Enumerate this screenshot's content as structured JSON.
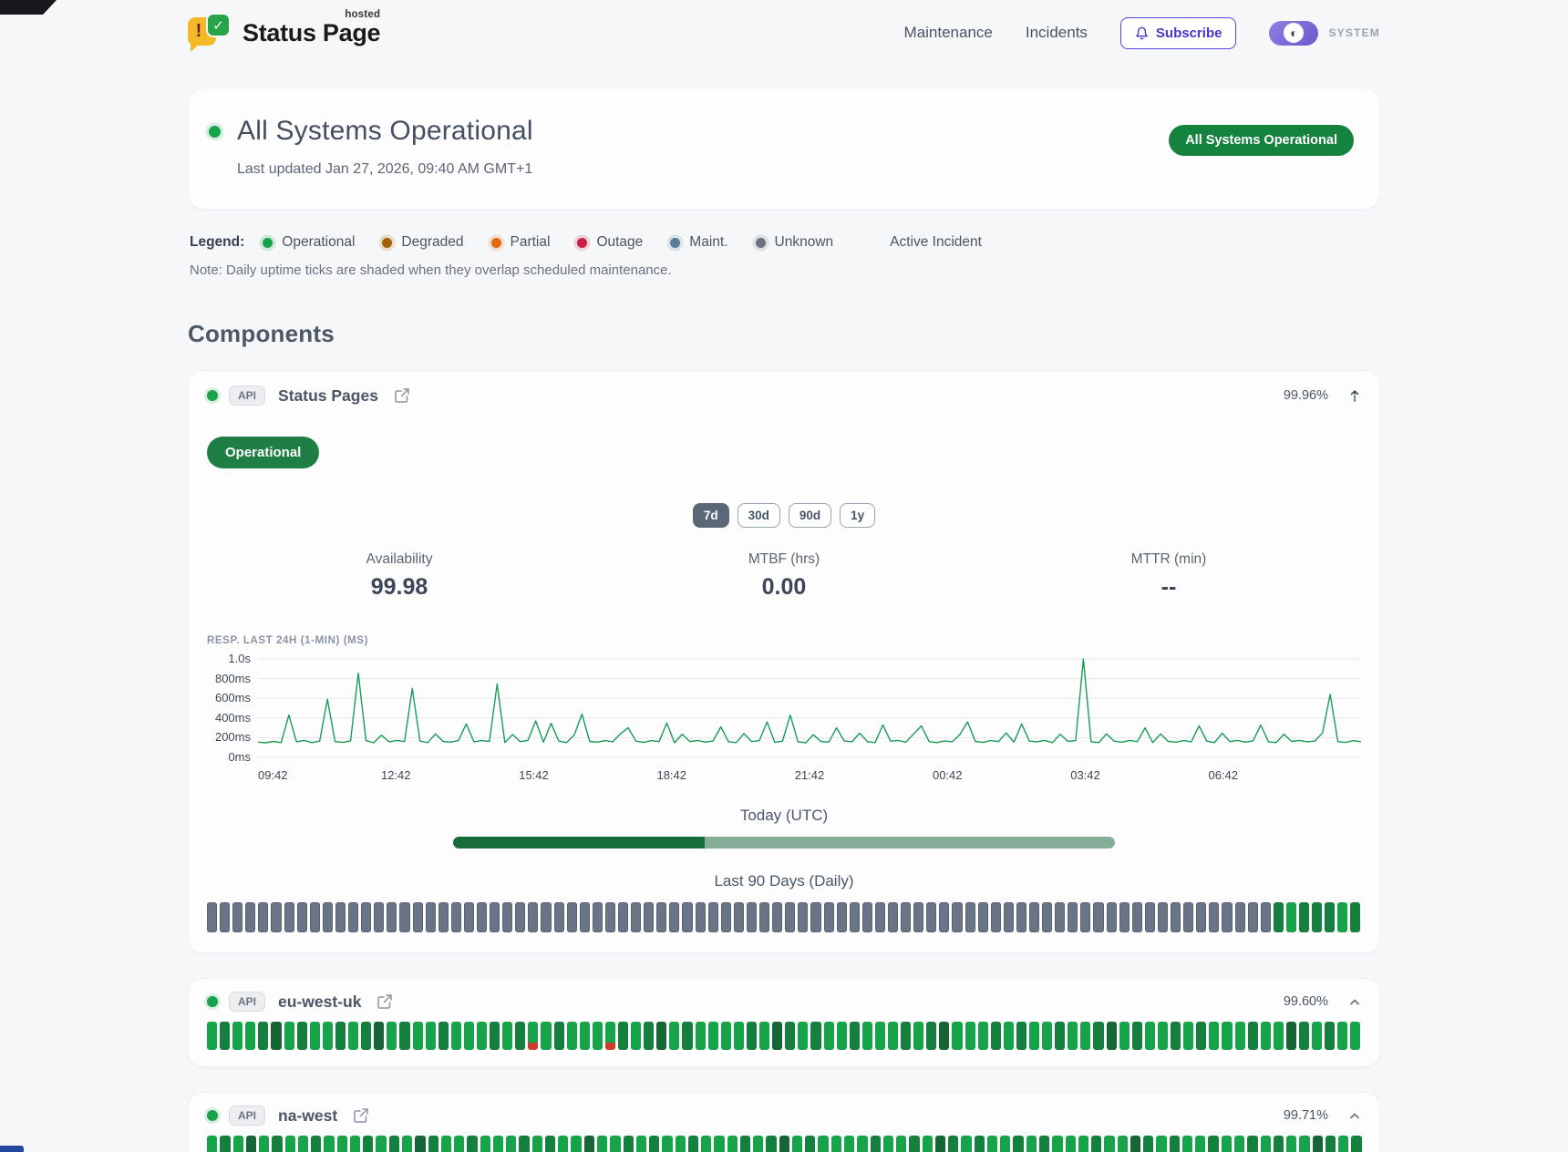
{
  "header": {
    "logo": {
      "title": "Status Page",
      "superscript": "hosted"
    },
    "nav": [
      {
        "label": "Maintenance"
      },
      {
        "label": "Incidents"
      }
    ],
    "subscribe_label": "Subscribe",
    "theme_label": "SYSTEM"
  },
  "hero": {
    "title": "All Systems Operational",
    "last_updated": "Last updated Jan 27, 2026, 09:40 AM GMT+1",
    "badge": "All Systems Operational"
  },
  "legend": {
    "label": "Legend:",
    "items": [
      {
        "label": "Operational",
        "color": "#17a34a"
      },
      {
        "label": "Degraded",
        "color": "#a16207"
      },
      {
        "label": "Partial",
        "color": "#e06a13"
      },
      {
        "label": "Outage",
        "color": "#c81e45"
      },
      {
        "label": "Maint.",
        "color": "#577e94"
      },
      {
        "label": "Unknown",
        "color": "#6b7280"
      }
    ],
    "active_incident": "Active Incident",
    "note": "Note: Daily uptime ticks are shaded when they overlap scheduled maintenance."
  },
  "components_title": "Components",
  "tick_colors": {
    "u": "#697586",
    "g": "#17a34a",
    "G": "#15803d",
    "d": "#166534",
    "r_top": "#17a34a",
    "r_bottom": "#d03b2d"
  },
  "components": [
    {
      "tag": "API",
      "name": "Status Pages",
      "uptime": "99.96%",
      "status_label": "Operational",
      "ranges": [
        "7d",
        "30d",
        "90d",
        "1y"
      ],
      "active_range": "7d",
      "metrics": [
        {
          "label": "Availability",
          "value": "99.98"
        },
        {
          "label": "MTBF (hrs)",
          "value": "0.00"
        },
        {
          "label": "MTTR (min)",
          "value": "--"
        }
      ],
      "chart": {
        "label": "RESP. LAST 24H (1-MIN) (MS)",
        "y_ticks": [
          "1.0s",
          "800ms",
          "600ms",
          "400ms",
          "200ms",
          "0ms"
        ],
        "x_ticks": [
          "09:42",
          "12:42",
          "15:42",
          "18:42",
          "21:42",
          "00:42",
          "03:42",
          "06:42"
        ],
        "y_max_ms": 1000,
        "line_color": "#1a9b57",
        "values": [
          155,
          148,
          162,
          150,
          430,
          158,
          172,
          150,
          165,
          590,
          160,
          152,
          168,
          855,
          170,
          148,
          225,
          158,
          172,
          160,
          700,
          165,
          150,
          238,
          162,
          155,
          172,
          340,
          158,
          170,
          162,
          745,
          150,
          232,
          160,
          172,
          370,
          155,
          345,
          165,
          150,
          228,
          440,
          162,
          155,
          170,
          158,
          240,
          300,
          165,
          152,
          170,
          160,
          350,
          148,
          235,
          160,
          172,
          155,
          168,
          310,
          158,
          150,
          242,
          160,
          170,
          360,
          152,
          165,
          430,
          158,
          148,
          230,
          162,
          155,
          300,
          168,
          158,
          245,
          160,
          150,
          330,
          165,
          172,
          155,
          238,
          320,
          160,
          150,
          168,
          158,
          232,
          360,
          162,
          152,
          170,
          160,
          248,
          155,
          340,
          165,
          158,
          172,
          150,
          235,
          162,
          170,
          1000,
          158,
          150,
          240,
          165,
          155,
          172,
          160,
          300,
          150,
          238,
          162,
          155,
          170,
          158,
          320,
          165,
          150,
          245,
          160,
          172,
          155,
          168,
          330,
          158,
          150,
          235,
          162,
          172,
          158,
          165,
          248,
          640,
          160,
          152,
          170,
          158
        ]
      },
      "today_label": "Today (UTC)",
      "today_progress_pct": 38,
      "history_label": "Last 90 Days (Daily)",
      "ticks": "uuuuuuuuuuuuuuuuuuuuuuuuuuuuuuuuuuuuuuuuuuuuuuuuuuuuuuuuuuuuuuuuuuuuuuuuuuuuuuuuuuuGgGGGgG"
    },
    {
      "tag": "API",
      "name": "eu-west-uk",
      "uptime": "99.60%",
      "ticks": "gGggGdgGggGgGdgGggGgggGgGrgGgggrGgGdgGggggGgdGgGggGgggGgGdgggGgGggGggGdgGggGgGgggGggdGgGgg"
    },
    {
      "tag": "API",
      "name": "na-west",
      "uptime": "99.71%",
      "ticks": "gGgdgGggGgggGgGgdGggGgggGgGggdgrGgGggGgggGgGdgGggggGggGgdGgGggGgGgggGggdGgGggGggGgGggdGgG"
    }
  ]
}
